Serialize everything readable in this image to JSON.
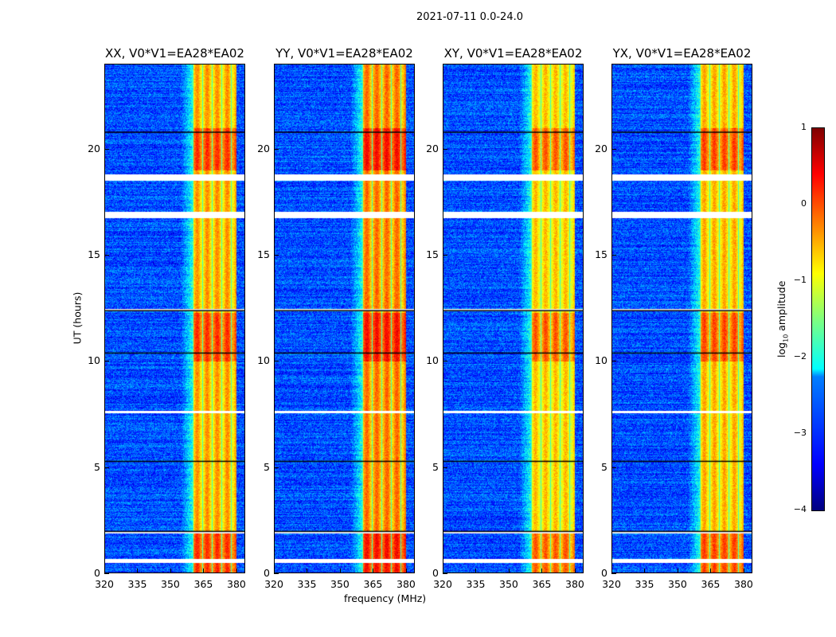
{
  "suptitle": "2021-07-11 0.0-24.0",
  "xlabel": "frequency (MHz)",
  "ylabel": "UT (hours)",
  "colorbar": {
    "label_prefix": "log",
    "label_sub": "10",
    "label_suffix": " amplitude",
    "ticks": [
      "1",
      "0",
      "−1",
      "−2",
      "−3",
      "−4"
    ],
    "range": [
      -4,
      1
    ],
    "colormap": "jet"
  },
  "chart_data": {
    "type": "heatmap",
    "title": "2021-07-11 0.0-24.0",
    "xlabel": "frequency (MHz)",
    "ylabel": "UT (hours)",
    "xlim": [
      320,
      384
    ],
    "ylim": [
      0,
      24
    ],
    "xticks": [
      "320",
      "335",
      "350",
      "365",
      "380"
    ],
    "yticks": [
      "0",
      "5",
      "10",
      "15",
      "20"
    ],
    "colorbar_range": [
      -4,
      1
    ],
    "panels": [
      {
        "title": "XX, V0*V1=EA28*EA02",
        "background_level": -3.0,
        "band_level": -0.6
      },
      {
        "title": "YY, V0*V1=EA28*EA02",
        "background_level": -3.0,
        "band_level": -0.4
      },
      {
        "title": "XY, V0*V1=EA28*EA02",
        "background_level": -3.0,
        "band_level": -0.8
      },
      {
        "title": "YX, V0*V1=EA28*EA02",
        "background_level": -3.0,
        "band_level": -0.7
      }
    ],
    "rfi_band_mhz": [
      360,
      380
    ],
    "flagged_hours": [
      [
        0.5,
        0.7
      ],
      [
        1.9,
        2.0
      ],
      [
        7.55,
        7.65
      ],
      [
        12.35,
        12.45
      ],
      [
        16.75,
        17.05
      ],
      [
        18.5,
        18.8
      ]
    ]
  }
}
